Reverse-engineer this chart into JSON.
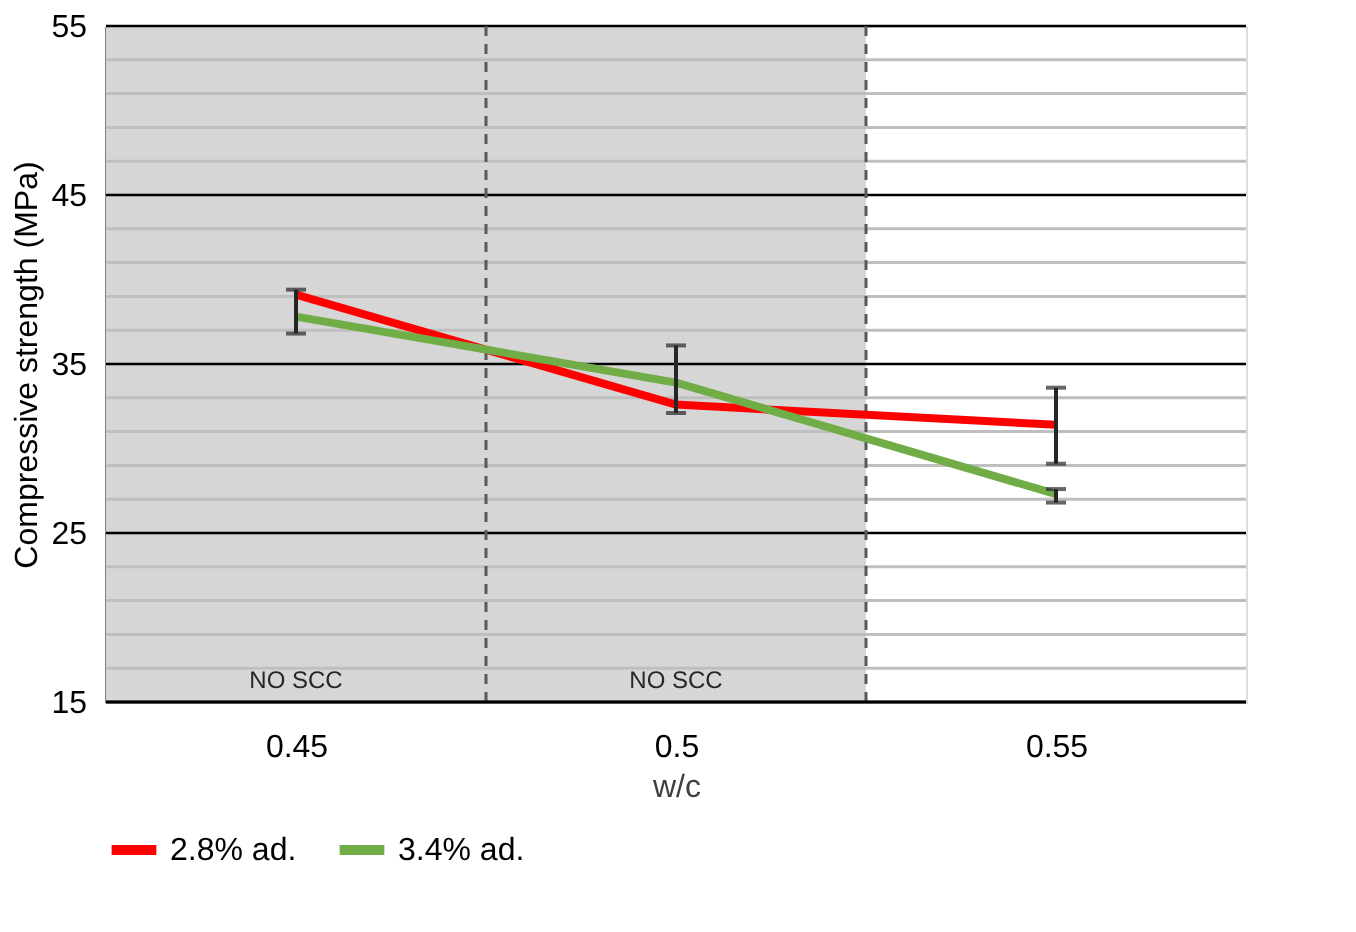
{
  "chart_data": {
    "type": "line",
    "xlabel": "w/c",
    "ylabel": "Compressive strength (MPa)",
    "x": [
      0.45,
      0.5,
      0.55
    ],
    "xlim": [
      0.425,
      0.575
    ],
    "xticks": [
      0.45,
      0.5,
      0.55
    ],
    "ylim": [
      15,
      55
    ],
    "yticks": [
      15,
      {
        "value": 17,
        "label": null
      },
      {
        "value": 19,
        "label": null
      },
      {
        "value": 21,
        "label": null
      },
      {
        "value": 23,
        "label": null
      },
      25,
      {
        "value": 27,
        "label": null
      },
      {
        "value": 29,
        "label": null
      },
      {
        "value": 31,
        "label": null
      },
      {
        "value": 33,
        "label": null
      },
      35,
      {
        "value": 37,
        "label": null
      },
      {
        "value": 39,
        "label": null
      },
      {
        "value": 41,
        "label": null
      },
      {
        "value": 43,
        "label": null
      },
      45,
      {
        "value": 47,
        "label": null
      },
      {
        "value": 49,
        "label": null
      },
      {
        "value": 51,
        "label": null
      },
      {
        "value": 53,
        "label": null
      },
      55
    ],
    "series": [
      {
        "name": "2.8% ad.",
        "color": "#ff0000",
        "values": [
          39.1,
          32.6,
          31.4
        ],
        "errors": [
          null,
          null,
          [
            29.1,
            33.6
          ]
        ]
      },
      {
        "name": "3.4% ad.",
        "color": "#70ad47",
        "values": [
          37.8,
          33.9,
          27.3
        ],
        "errors": [
          [
            36.8,
            39.4
          ],
          [
            32.1,
            36.1
          ],
          [
            26.8,
            27.6
          ]
        ]
      }
    ],
    "bands": [
      {
        "axis": "x",
        "from": 0.425,
        "to": 0.475,
        "label": "NO SCC",
        "color": "#d6d6d6"
      },
      {
        "axis": "x",
        "from": 0.475,
        "to": 0.525,
        "label": "NO SCC",
        "color": "#d6d6d6"
      }
    ],
    "ref_lines": [
      {
        "axis": "x",
        "value": 0.475,
        "line_style": "dashed",
        "color": "#595959"
      },
      {
        "axis": "x",
        "value": 0.525,
        "line_style": "dashed",
        "color": "#595959"
      }
    ],
    "grid": "y",
    "legend": "bottom",
    "marker": "none",
    "line_style": "solid"
  }
}
